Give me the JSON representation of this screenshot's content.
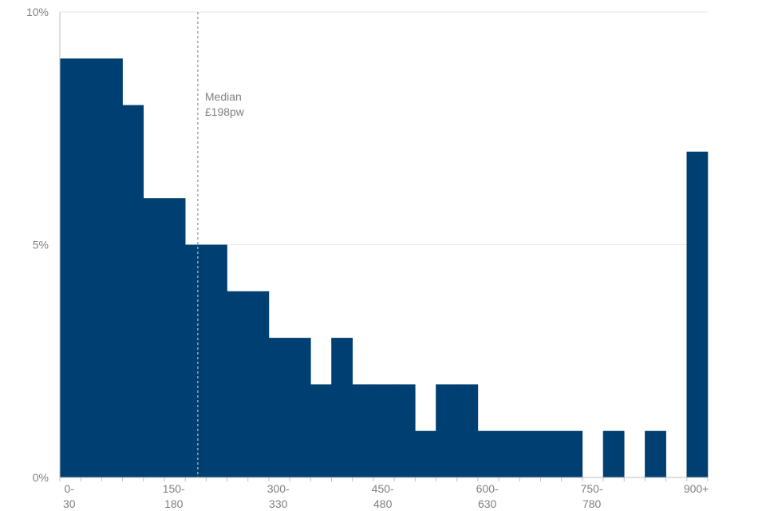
{
  "chart_data": {
    "type": "bar",
    "title": "",
    "xlabel": "",
    "ylabel": "",
    "ylim": [
      0,
      10
    ],
    "grid": true,
    "colors": {
      "bar": "#003f72",
      "grid": "#e6e6e6",
      "axis": "#bfbfbf",
      "text": "#808080",
      "median_line": "#a6a6a6"
    },
    "categories": [
      "0-30",
      "30-60",
      "60-90",
      "90-120",
      "120-150",
      "150-180",
      "180-210",
      "210-240",
      "240-270",
      "270-300",
      "300-330",
      "330-360",
      "360-390",
      "390-420",
      "420-450",
      "450-480",
      "480-510",
      "510-540",
      "540-570",
      "570-600",
      "600-630",
      "630-660",
      "660-690",
      "690-720",
      "720-750",
      "750-780",
      "780-810",
      "810-840",
      "840-870",
      "870-900",
      "900+"
    ],
    "values": [
      9,
      9,
      9,
      8,
      6,
      6,
      5,
      5,
      4,
      4,
      3,
      3,
      2,
      3,
      2,
      2,
      2,
      1,
      2,
      2,
      1,
      1,
      1,
      1,
      1,
      0,
      1,
      0,
      1,
      0,
      7
    ],
    "x_tick_labels": [
      {
        "index": 0,
        "line1": "0-",
        "line2": "30"
      },
      {
        "index": 5,
        "line1": "150-",
        "line2": "180"
      },
      {
        "index": 10,
        "line1": "300-",
        "line2": "330"
      },
      {
        "index": 15,
        "line1": "450-",
        "line2": "480"
      },
      {
        "index": 20,
        "line1": "600-",
        "line2": "630"
      },
      {
        "index": 25,
        "line1": "750-",
        "line2": "780"
      },
      {
        "index": 30,
        "line1": "900+",
        "line2": ""
      }
    ],
    "y_ticks": [
      {
        "value": 0,
        "label": "0%"
      },
      {
        "value": 5,
        "label": "5%"
      },
      {
        "value": 10,
        "label": "10%"
      }
    ],
    "median": {
      "value": 198,
      "label_line1": "Median",
      "label_line2": "£198pw"
    }
  }
}
